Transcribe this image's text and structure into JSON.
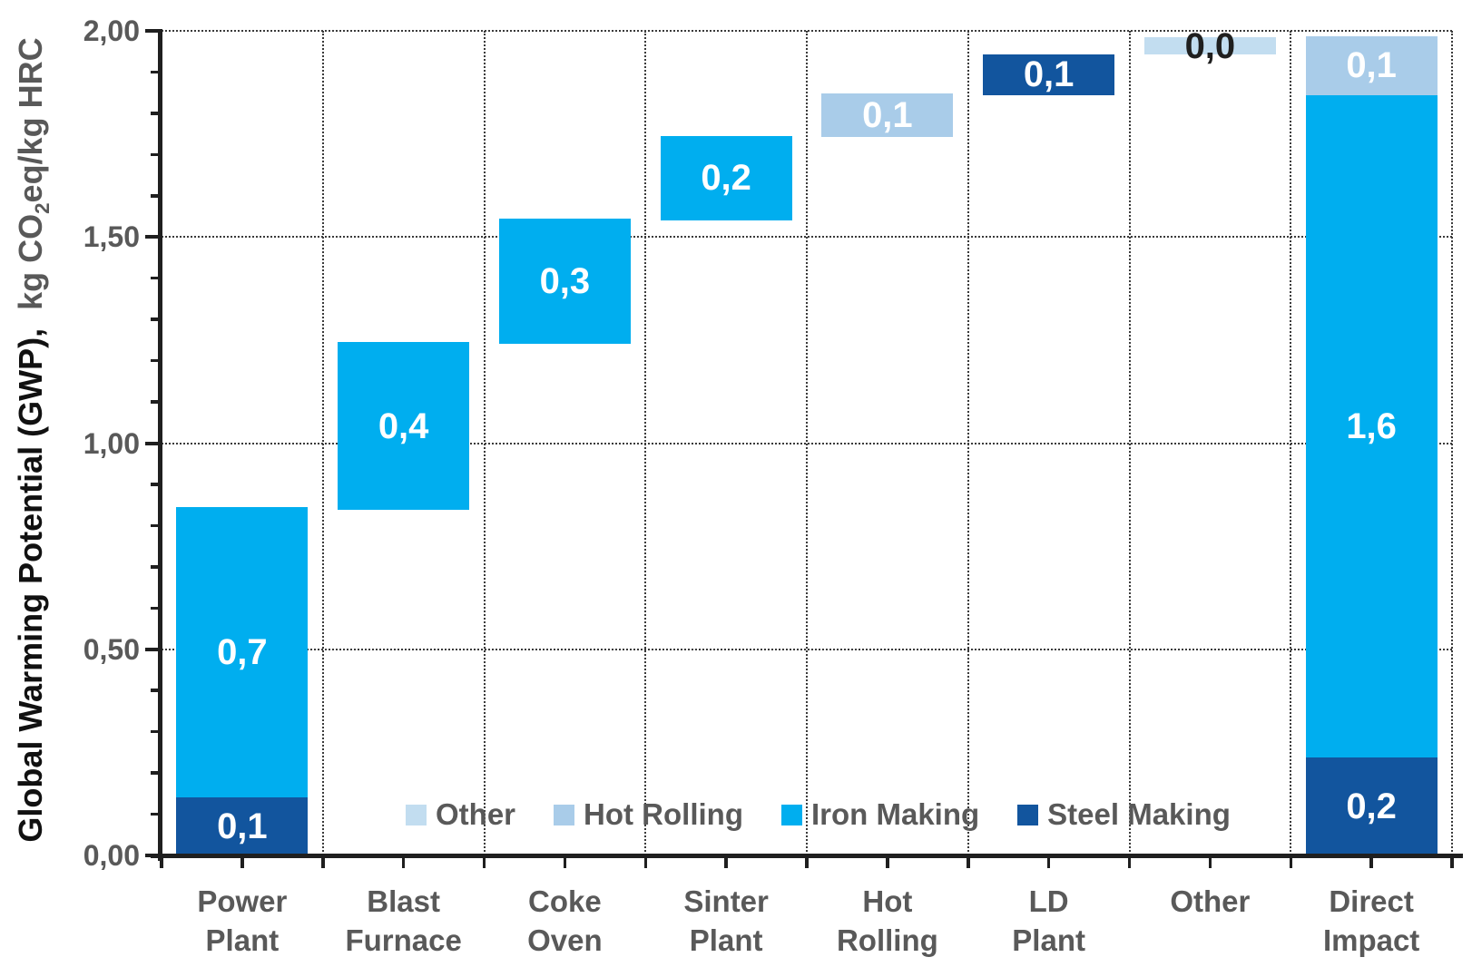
{
  "y_axis": {
    "title_main": "Global Warming Potential (GWP),",
    "unit_pre": "kg CO",
    "unit_sub": "2",
    "unit_post": "eq/kg HRC"
  },
  "chart_data": {
    "type": "bar",
    "subtype": "stacked-waterfall",
    "title": "",
    "xlabel": "",
    "ylabel": "Global Warming Potential (GWP), kg CO2eq/kg HRC",
    "ylim": [
      0,
      2
    ],
    "grid": "dotted major gridlines, horizontal and vertical",
    "legend_position": "inside-bottom",
    "yticks": [
      {
        "value": 0.0,
        "label": "0,00"
      },
      {
        "value": 0.5,
        "label": "0,50"
      },
      {
        "value": 1.0,
        "label": "1,00"
      },
      {
        "value": 1.5,
        "label": "1,50"
      },
      {
        "value": 2.0,
        "label": "2,00"
      }
    ],
    "minor_tick_step": 0.1,
    "legend": [
      "Other",
      "Hot Rolling",
      "Iron Making",
      "Steel Making"
    ],
    "series_colors": {
      "Other": "#C2DDF0",
      "Hot Rolling": "#A9CCE9",
      "Iron Making": "#00AEEF",
      "Steel Making": "#12559E"
    },
    "categories": [
      {
        "id": "power-plant",
        "label_lines": [
          "Power",
          "Plant"
        ],
        "segments": [
          {
            "series": "Steel Making",
            "from": 0.0,
            "to": 0.14,
            "label": "0,1",
            "label_color": "#FFFFFF"
          },
          {
            "series": "Iron Making",
            "from": 0.14,
            "to": 0.845,
            "label": "0,7",
            "label_color": "#FFFFFF"
          }
        ]
      },
      {
        "id": "blast-furnace",
        "label_lines": [
          "Blast",
          "Furnace"
        ],
        "segments": [
          {
            "series": "Iron Making",
            "from": 0.838,
            "to": 1.245,
            "label": "0,4",
            "label_color": "#FFFFFF"
          }
        ]
      },
      {
        "id": "coke-oven",
        "label_lines": [
          "Coke",
          "Oven"
        ],
        "segments": [
          {
            "series": "Iron Making",
            "from": 1.24,
            "to": 1.545,
            "label": "0,3",
            "label_color": "#FFFFFF"
          }
        ]
      },
      {
        "id": "sinter-plant",
        "label_lines": [
          "Sinter",
          "Plant"
        ],
        "segments": [
          {
            "series": "Iron Making",
            "from": 1.54,
            "to": 1.745,
            "label": "0,2",
            "label_color": "#FFFFFF"
          }
        ]
      },
      {
        "id": "hot-rolling",
        "label_lines": [
          "Hot",
          "Rolling"
        ],
        "segments": [
          {
            "series": "Hot Rolling",
            "from": 1.743,
            "to": 1.848,
            "label": "0,1",
            "label_color": "#FFFFFF"
          }
        ]
      },
      {
        "id": "ld-plant",
        "label_lines": [
          "LD",
          "Plant"
        ],
        "segments": [
          {
            "series": "Steel Making",
            "from": 1.844,
            "to": 1.943,
            "label": "0,1",
            "label_color": "#FFFFFF"
          }
        ]
      },
      {
        "id": "other",
        "label_lines": [
          "Other"
        ],
        "segments": [
          {
            "series": "Other",
            "from": 1.942,
            "to": 1.984,
            "label": "0,0",
            "label_color": "#1F1F1F"
          }
        ]
      },
      {
        "id": "direct-impact",
        "label_lines": [
          "Direct",
          "Impact"
        ],
        "segments": [
          {
            "series": "Steel Making",
            "from": 0.0,
            "to": 0.238,
            "label": "0,2",
            "label_color": "#FFFFFF"
          },
          {
            "series": "Iron Making",
            "from": 0.238,
            "to": 1.844,
            "label": "1,6",
            "label_color": "#FFFFFF"
          },
          {
            "series": "Hot Rolling",
            "from": 1.844,
            "to": 1.987,
            "label": "0,1",
            "label_color": "#FFFFFF"
          }
        ]
      }
    ]
  }
}
